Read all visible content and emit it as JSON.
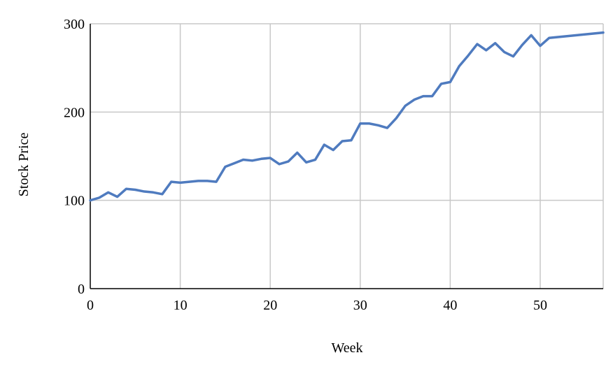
{
  "chart_data": {
    "type": "line",
    "title": "",
    "xlabel": "Week",
    "ylabel": "Stock Price",
    "xlim": [
      0,
      57
    ],
    "ylim": [
      0,
      300
    ],
    "x_ticks": [
      0,
      10,
      20,
      30,
      40,
      50
    ],
    "y_ticks": [
      0,
      100,
      200,
      300
    ],
    "grid": true,
    "legend": "none",
    "line_color": "#4f7bbf",
    "grid_color": "#c8c8c8",
    "series": [
      {
        "x": [
          0,
          1,
          2,
          3,
          4,
          5,
          6,
          7,
          8,
          9,
          10,
          11,
          12,
          13,
          14,
          15,
          16,
          17,
          18,
          19,
          20,
          21,
          22,
          23,
          24,
          25,
          26,
          27,
          28,
          29,
          30,
          31,
          32,
          33,
          34,
          35,
          36,
          37,
          38,
          39,
          40,
          41,
          42,
          43,
          44,
          45,
          46,
          47,
          48,
          49,
          50,
          51,
          57
        ],
        "values": [
          100,
          103,
          109,
          104,
          113,
          112,
          110,
          109,
          107,
          121,
          120,
          121,
          122,
          122,
          121,
          138,
          142,
          146,
          145,
          147,
          148,
          141,
          144,
          154,
          143,
          146,
          163,
          157,
          167,
          168,
          187,
          187,
          185,
          182,
          193,
          207,
          214,
          218,
          218,
          232,
          234,
          252,
          264,
          277,
          270,
          278,
          268,
          263,
          276,
          287,
          275,
          284,
          290
        ]
      }
    ]
  }
}
